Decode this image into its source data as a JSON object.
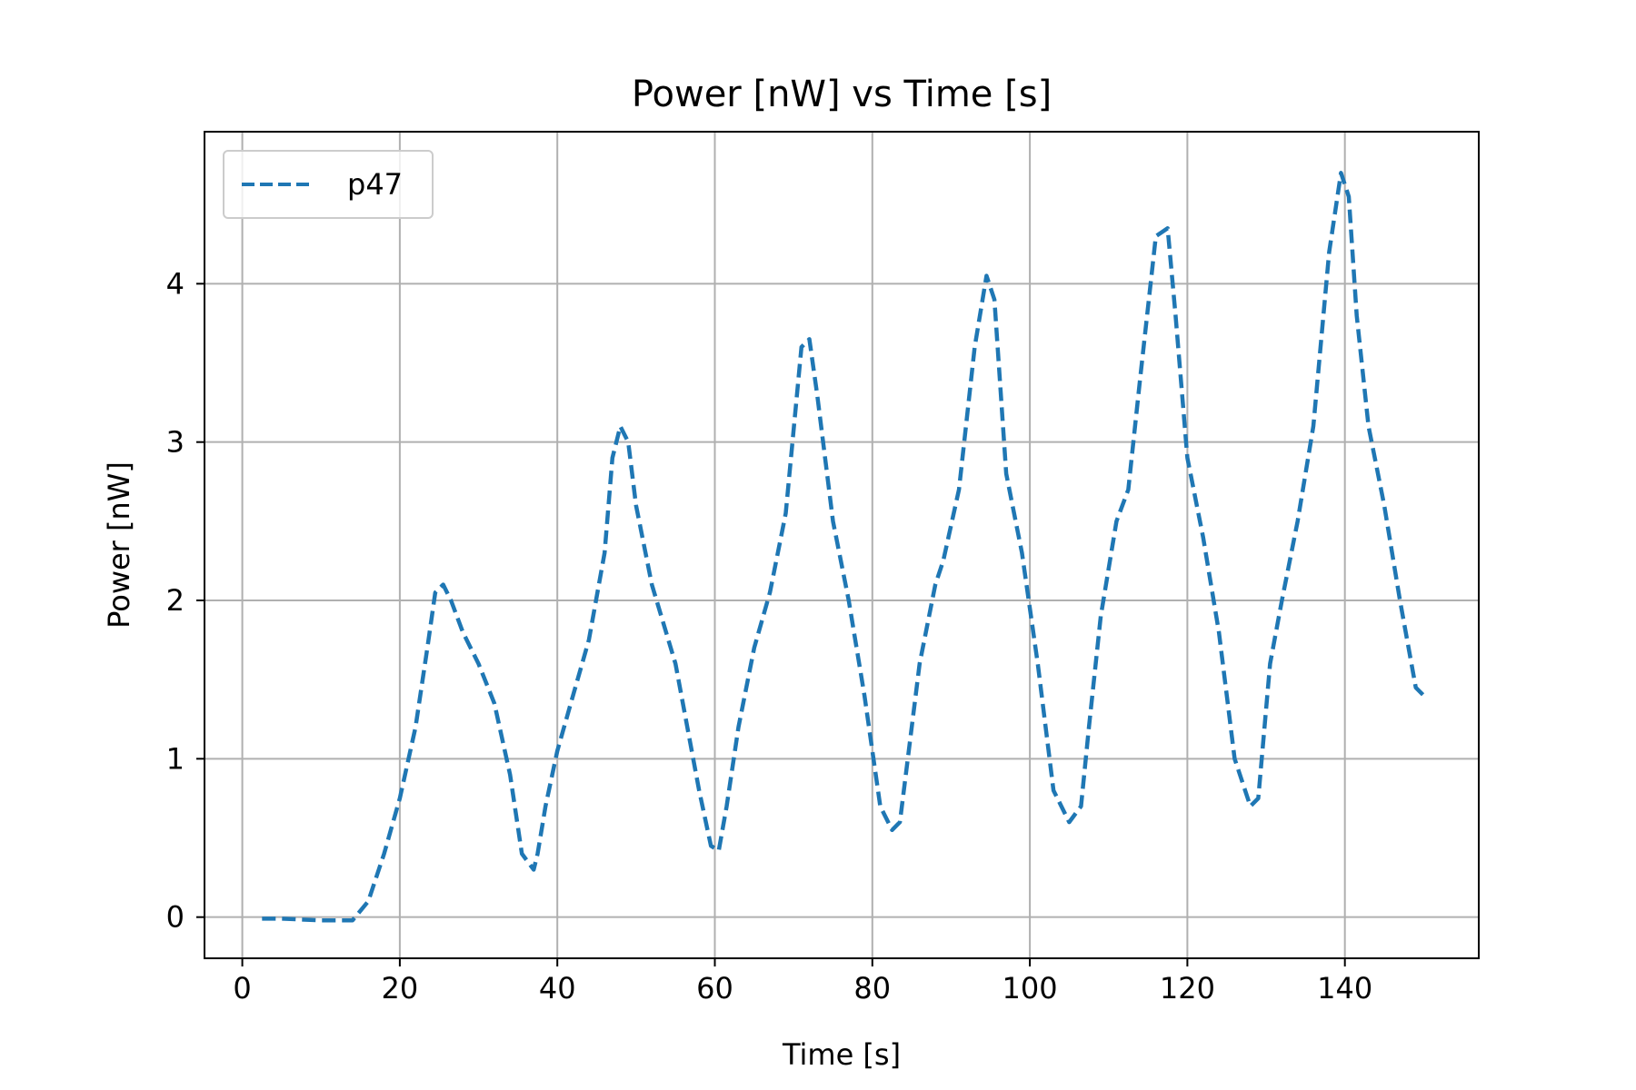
{
  "chart_data": {
    "type": "line",
    "title": "Power [nW] vs Time [s]",
    "xlabel": "Time [s]",
    "ylabel": "Power [nW]",
    "xlim": [
      -4.8,
      157.0
    ],
    "ylim": [
      -0.26,
      4.96
    ],
    "xticks": [
      0,
      20,
      40,
      60,
      80,
      100,
      120,
      140
    ],
    "yticks": [
      0,
      1,
      2,
      3,
      4
    ],
    "grid": true,
    "legend_position": "upper-left",
    "series": [
      {
        "name": "p47",
        "color": "#1f77b4",
        "line_style": "dashed",
        "x": [
          2.5,
          5,
          10,
          14,
          16,
          18,
          20,
          22,
          23.5,
          24.5,
          25.5,
          26.5,
          28,
          30,
          32,
          34,
          35.5,
          37,
          37.5,
          38.5,
          40,
          42,
          44,
          46,
          47,
          48,
          49,
          50,
          52,
          55,
          58,
          59.5,
          60.5,
          61.5,
          63,
          65,
          67,
          69,
          71,
          72,
          73,
          75,
          77,
          79,
          81,
          82.5,
          83.5,
          84.5,
          86,
          88,
          89,
          91,
          93,
          94.5,
          95.5,
          97,
          99,
          101,
          103,
          105,
          106.5,
          107.5,
          109,
          111,
          112.5,
          114,
          116,
          117.5,
          118.5,
          120,
          122,
          124,
          126,
          128,
          129,
          130.5,
          132,
          134,
          136,
          138,
          139.5,
          140.5,
          141.5,
          143,
          145,
          147,
          149,
          150
        ],
        "values": [
          -0.01,
          -0.01,
          -0.02,
          -0.02,
          0.1,
          0.4,
          0.75,
          1.2,
          1.7,
          2.05,
          2.1,
          2.0,
          1.8,
          1.6,
          1.35,
          0.9,
          0.4,
          0.3,
          0.4,
          0.7,
          1.05,
          1.4,
          1.75,
          2.3,
          2.9,
          3.1,
          3.0,
          2.6,
          2.1,
          1.6,
          0.8,
          0.45,
          0.42,
          0.7,
          1.2,
          1.7,
          2.05,
          2.55,
          3.6,
          3.65,
          3.3,
          2.5,
          2.0,
          1.4,
          0.7,
          0.55,
          0.6,
          1.0,
          1.6,
          2.1,
          2.25,
          2.7,
          3.6,
          4.05,
          3.9,
          2.8,
          2.3,
          1.6,
          0.8,
          0.6,
          0.7,
          1.2,
          1.9,
          2.5,
          2.7,
          3.4,
          4.3,
          4.35,
          3.8,
          2.9,
          2.4,
          1.8,
          1.0,
          0.7,
          0.75,
          1.6,
          2.0,
          2.5,
          3.1,
          4.2,
          4.7,
          4.55,
          3.8,
          3.1,
          2.6,
          2.0,
          1.45,
          1.4
        ]
      }
    ]
  }
}
